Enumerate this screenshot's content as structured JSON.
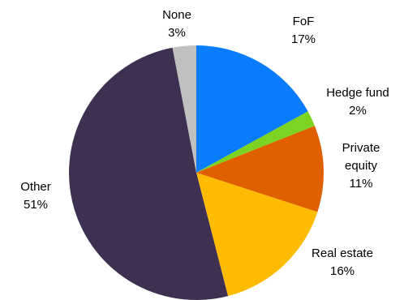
{
  "chart_data": {
    "type": "pie",
    "title": "",
    "slices": [
      {
        "label": "FoF",
        "value": 17,
        "value_label": "17%",
        "color": "#0A7CFF"
      },
      {
        "label": "Hedge fund",
        "value": 2,
        "value_label": "2%",
        "color": "#7DD420"
      },
      {
        "label": "Private equity",
        "value": 11,
        "value_label": "11%",
        "color": "#E06000"
      },
      {
        "label": "Real estate",
        "value": 16,
        "value_label": "16%",
        "color": "#FFBB00"
      },
      {
        "label": "Other",
        "value": 51,
        "value_label": "51%",
        "color": "#3D3050"
      },
      {
        "label": "None",
        "value": 3,
        "value_label": "3%",
        "color": "#C0C0C0"
      }
    ],
    "start": "12 o'clock",
    "direction": "clockwise",
    "legend": "none"
  }
}
